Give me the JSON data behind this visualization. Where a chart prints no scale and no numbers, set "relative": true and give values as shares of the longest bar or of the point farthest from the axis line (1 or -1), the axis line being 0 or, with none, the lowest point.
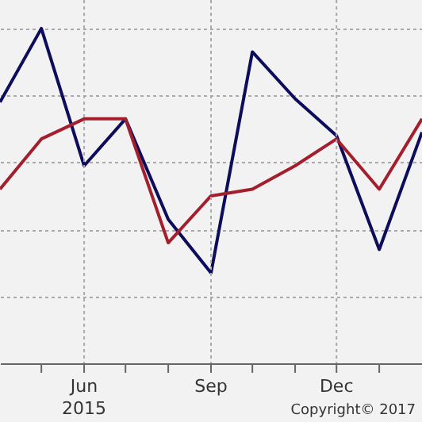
{
  "chart_data": {
    "type": "line",
    "relative": true,
    "grid": true,
    "x": [
      "2015-04-01",
      "2015-05-01",
      "2015-06-01",
      "2015-07-01",
      "2015-08-01",
      "2015-09-01",
      "2015-10-01",
      "2015-11-01",
      "2015-12-01",
      "2016-01-01",
      "2016-02-01"
    ],
    "xlim": [
      "2015-04-01",
      "2016-02-01"
    ],
    "xticks": [
      {
        "value": "2015-05-01",
        "label": null
      },
      {
        "value": "2015-06-01",
        "label": "Jun 2015"
      },
      {
        "value": "2015-07-01",
        "label": null
      },
      {
        "value": "2015-08-01",
        "label": null
      },
      {
        "value": "2015-09-01",
        "label": "Sep"
      },
      {
        "value": "2015-10-01",
        "label": null
      },
      {
        "value": "2015-11-01",
        "label": null
      },
      {
        "value": "2015-12-01",
        "label": "Dec"
      },
      {
        "value": "2016-01-01",
        "label": null
      }
    ],
    "series": [
      {
        "color": "#0d0d5c",
        "values": [
          0.78,
          1,
          0.59,
          0.73,
          0.43,
          0.27,
          0.93,
          0.79,
          0.68,
          0.34,
          0.69
        ]
      },
      {
        "color": "#a31f2e",
        "values": [
          0.52,
          0.67,
          0.73,
          0.73,
          0.36,
          0.5,
          0.52,
          0.59,
          0.67,
          0.52,
          0.73
        ]
      }
    ],
    "annotations": [
      "Copyright© 2017"
    ]
  }
}
